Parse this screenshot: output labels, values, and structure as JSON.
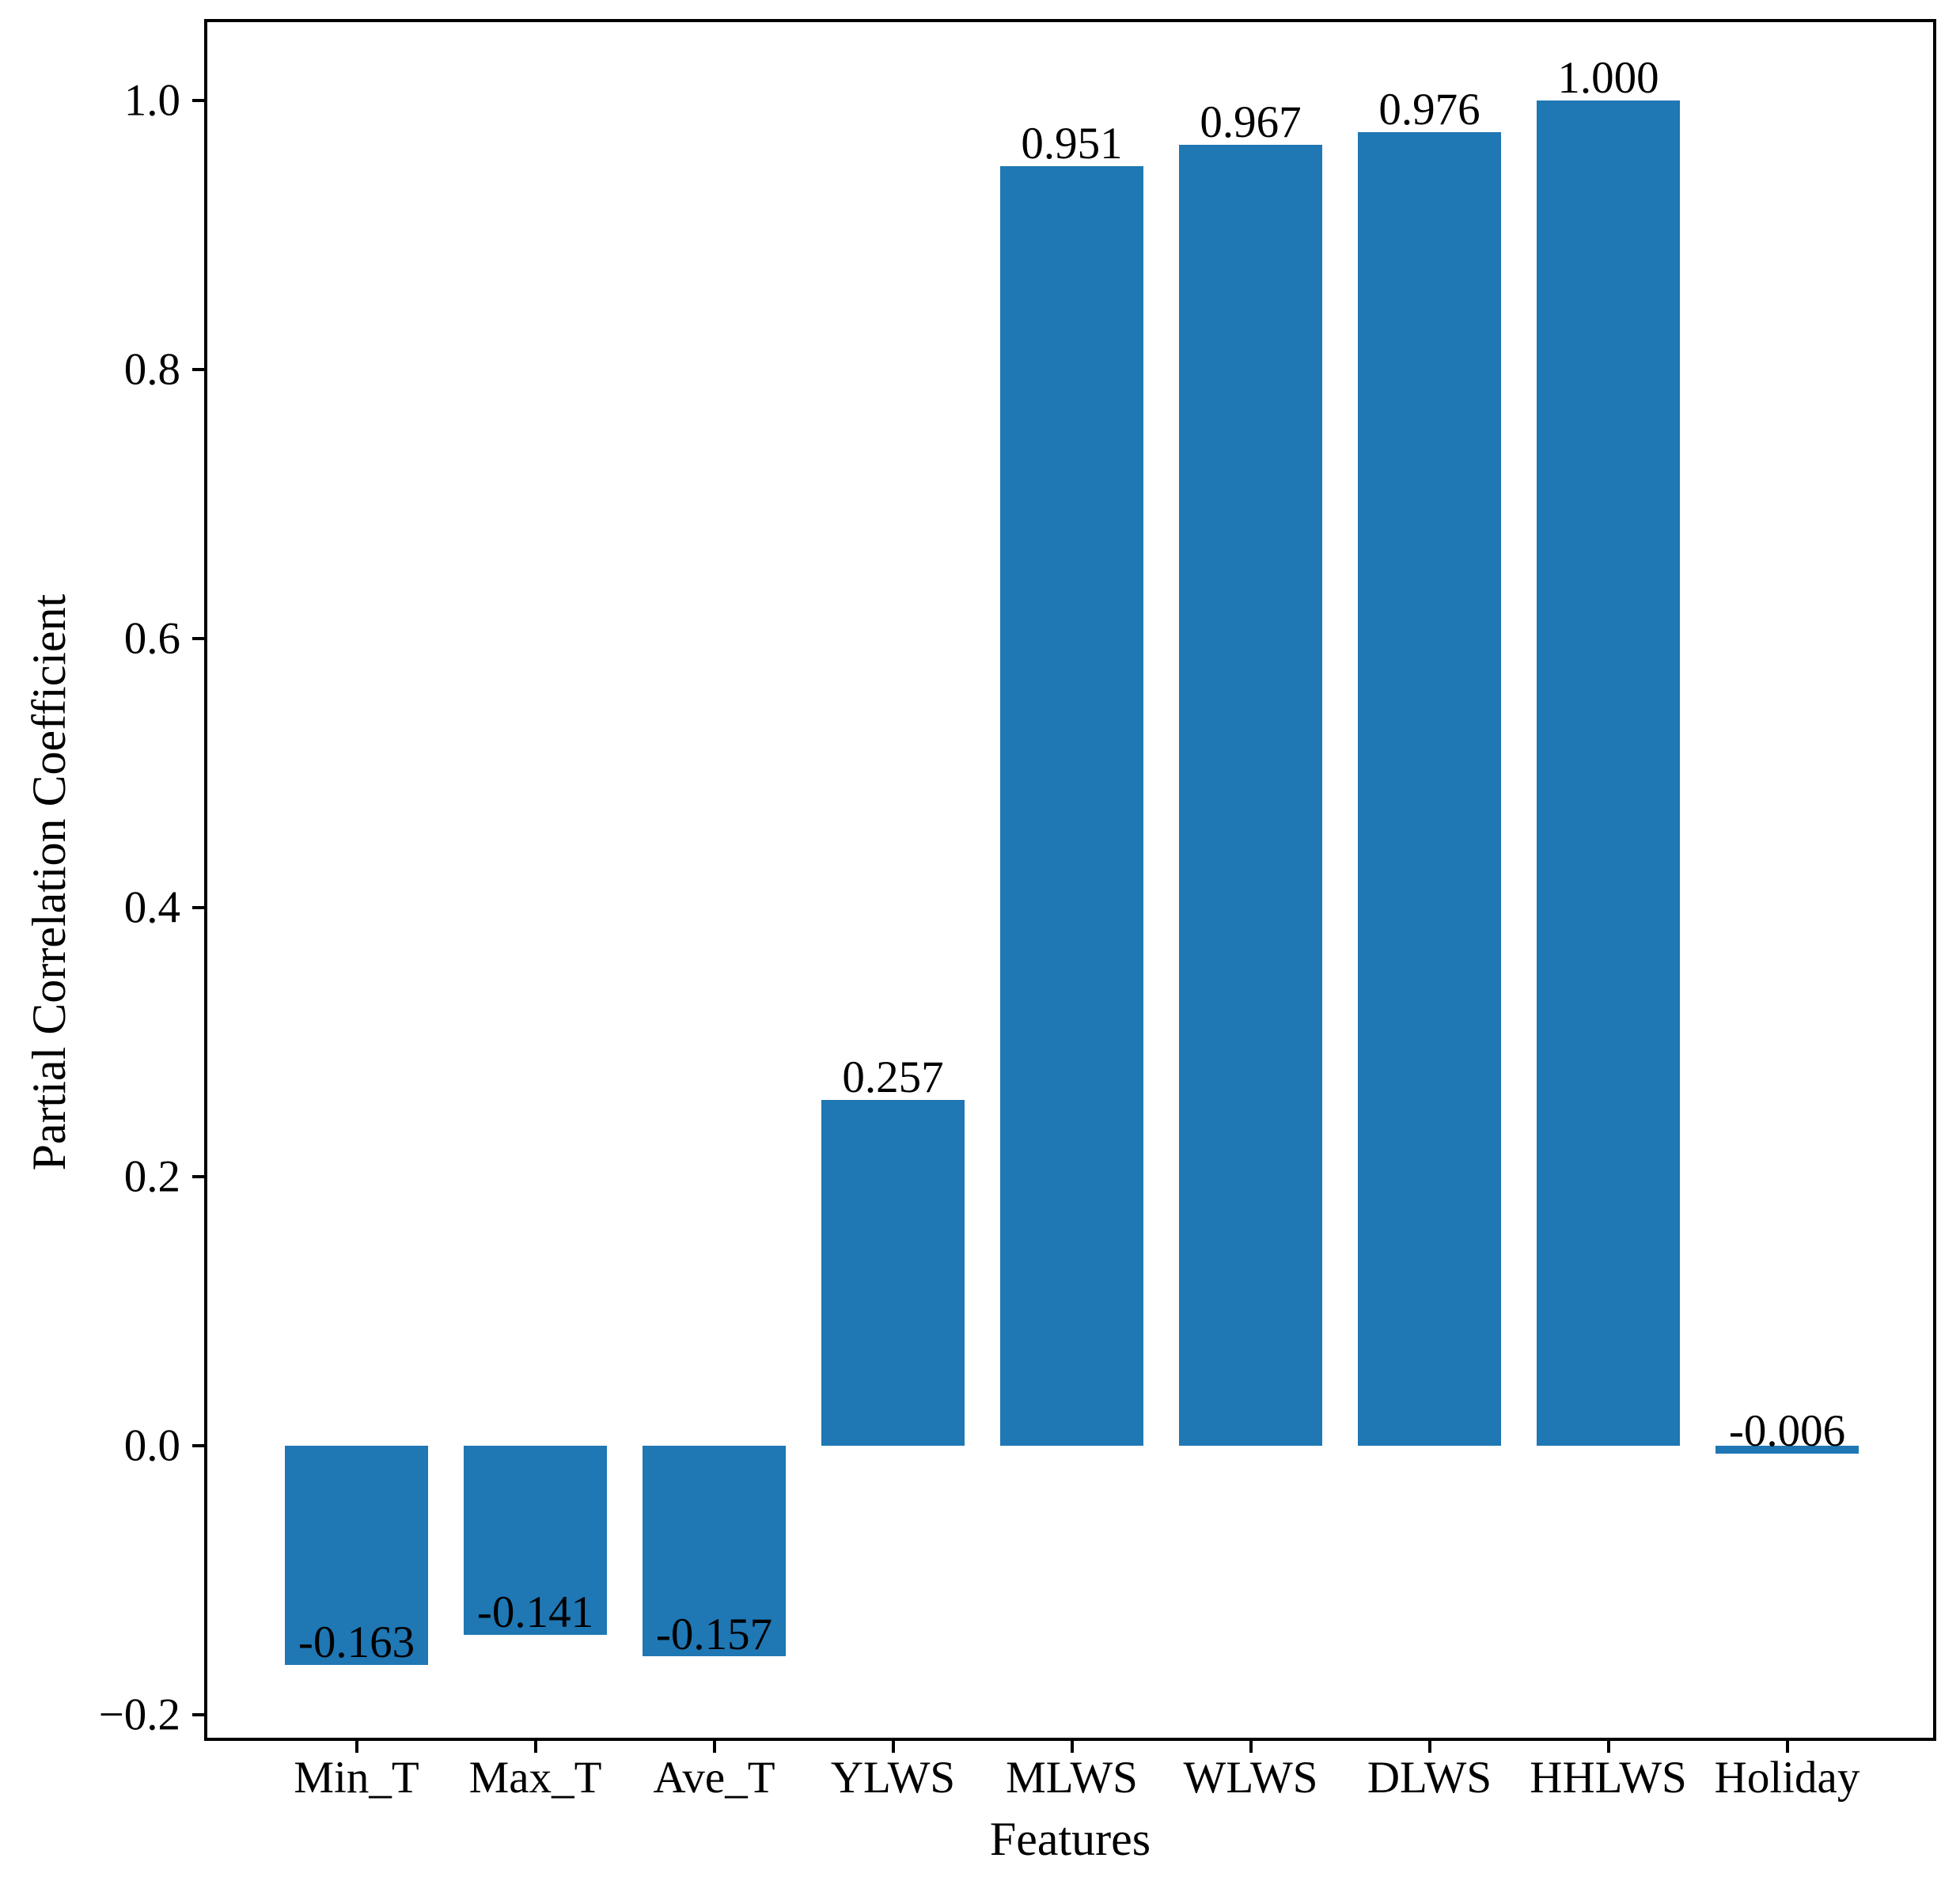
{
  "figure": {
    "background": "#ffffff"
  },
  "chart_data": {
    "type": "bar",
    "title": "",
    "xlabel": "Features",
    "ylabel": "Partial Correlation Coefficient",
    "categories": [
      "Min_T",
      "Max_T",
      "Ave_T",
      "YLWS",
      "MLWS",
      "WLWS",
      "DLWS",
      "HHLWS",
      "Holiday"
    ],
    "values": [
      -0.163,
      -0.141,
      -0.157,
      0.257,
      0.951,
      0.967,
      0.976,
      1.0,
      -0.006
    ],
    "bar_labels": [
      "-0.163",
      "-0.141",
      "-0.157",
      "0.257",
      "0.951",
      "0.967",
      "0.976",
      "1.000",
      "-0.006"
    ],
    "ylim": [
      -0.222,
      1.058
    ],
    "yticks": {
      "values": [
        1.0,
        0.8,
        0.6,
        0.4,
        0.2,
        0.0,
        -0.2
      ],
      "labels": [
        "1.0",
        "0.8",
        "0.6",
        "0.4",
        "0.2",
        "0.0",
        "−0.2"
      ]
    },
    "bar_color": "#1f77b4",
    "axis_color": "#000000",
    "text_color": "#000000",
    "grid": false,
    "legend": null
  }
}
